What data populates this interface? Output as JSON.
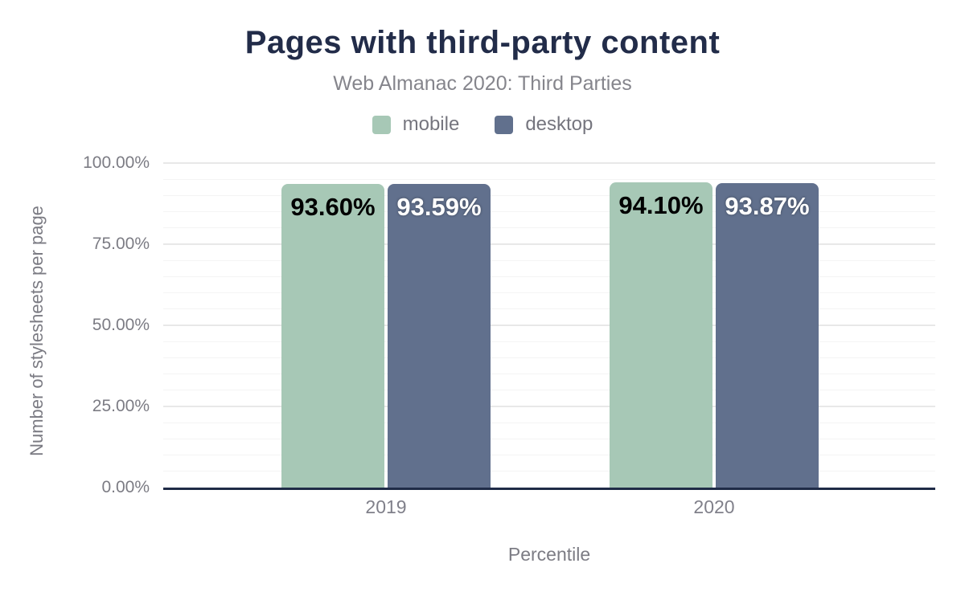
{
  "chart_data": {
    "type": "bar",
    "title": "Pages with third-party content",
    "subtitle": "Web Almanac 2020: Third Parties",
    "xlabel": "Percentile",
    "ylabel": "Number of stylesheets per page",
    "categories": [
      "2019",
      "2020"
    ],
    "series": [
      {
        "name": "mobile",
        "color": "#a7c8b6",
        "values": [
          93.6,
          94.1
        ],
        "value_labels": [
          "93.60%",
          "94.10%"
        ]
      },
      {
        "name": "desktop",
        "color": "#61708d",
        "values": [
          93.59,
          93.87
        ],
        "value_labels": [
          "93.59%",
          "93.87%"
        ]
      }
    ],
    "ylim": [
      0,
      100
    ],
    "ytick_labels": [
      "100.00%",
      "75.00%",
      "50.00%",
      "25.00%",
      "0.00%"
    ],
    "grid": "horizontal major gridlines every 25%, minor gridlines every 5%",
    "legend_position": "top-center",
    "colors": {
      "title_text": "#222c49",
      "axis_line": "#1f2b47",
      "muted_text": "#7b7b83",
      "major_gridline": "#e8e8e8",
      "minor_gridline": "#f4f4f4"
    }
  }
}
